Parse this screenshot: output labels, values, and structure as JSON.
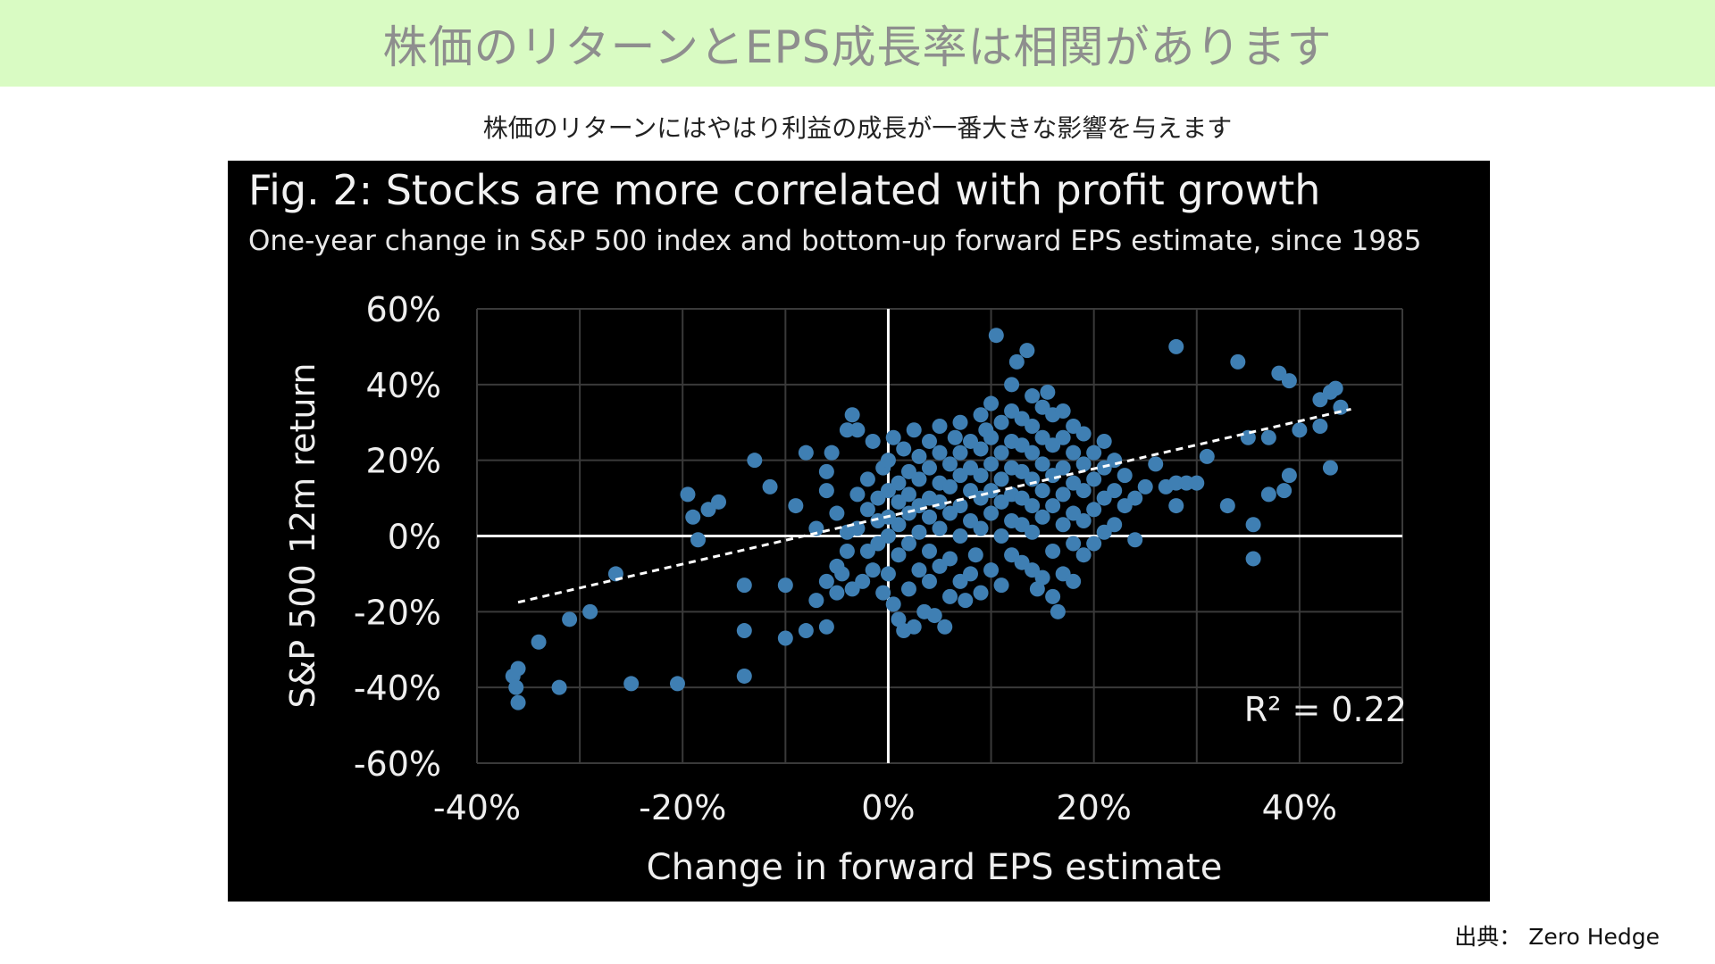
{
  "header": {
    "title": "株価のリターンとEPS成長率は相関があります"
  },
  "subtitle": "株価のリターンにはやはり利益の成長が一番大きな影響を与えます",
  "source": "出典： Zero Hedge",
  "chart_data": {
    "type": "scatter",
    "title": "Fig. 2: Stocks are more correlated with profit growth",
    "subtitle": "One-year change in S&P 500 index and bottom-up forward EPS estimate, since 1985",
    "xlabel": "Change in forward EPS estimate",
    "ylabel": "S&P 500 12m return",
    "xlim": [
      -40,
      50
    ],
    "ylim": [
      -60,
      60
    ],
    "x_ticks": [
      -40,
      -20,
      0,
      20,
      40
    ],
    "y_ticks": [
      -60,
      -40,
      -20,
      0,
      20,
      40,
      60
    ],
    "x_tick_labels": [
      "-40%",
      "-20%",
      "0%",
      "20%",
      "40%"
    ],
    "y_tick_labels": [
      "-60%",
      "-40%",
      "-20%",
      "0%",
      "20%",
      "40%",
      "60%"
    ],
    "grid": true,
    "annotation": "R² = 0.22",
    "trendline": {
      "x": [
        -36,
        45
      ],
      "y": [
        -17.5,
        33.5
      ],
      "style": "dashed"
    },
    "colors": {
      "points": "#3f7fb3",
      "background": "#000000",
      "grid": "#3a3a3a",
      "axes": "#ffffff",
      "trendline": "#ffffff"
    },
    "points": [
      [
        -36,
        -35
      ],
      [
        -36.5,
        -37
      ],
      [
        -36.2,
        -40
      ],
      [
        -36,
        -44
      ],
      [
        -34,
        -28
      ],
      [
        -32,
        -40
      ],
      [
        -31,
        -22
      ],
      [
        -29,
        -20
      ],
      [
        -26.5,
        -10
      ],
      [
        -25,
        -39
      ],
      [
        -20.5,
        -39
      ],
      [
        -19.5,
        11
      ],
      [
        -19,
        5
      ],
      [
        -18.5,
        -1
      ],
      [
        -17.5,
        7
      ],
      [
        -16.5,
        9
      ],
      [
        -14,
        -13
      ],
      [
        -14,
        -25
      ],
      [
        -14,
        -37
      ],
      [
        -13,
        20
      ],
      [
        -11.5,
        13
      ],
      [
        -10,
        -27
      ],
      [
        -10,
        -13
      ],
      [
        -9,
        8
      ],
      [
        -8,
        -25
      ],
      [
        -8,
        22
      ],
      [
        -7,
        -17
      ],
      [
        -7,
        2
      ],
      [
        -6,
        -24
      ],
      [
        -6,
        -12
      ],
      [
        -6,
        12
      ],
      [
        -6,
        17
      ],
      [
        -5.5,
        22
      ],
      [
        -5,
        -15
      ],
      [
        -5,
        -8
      ],
      [
        -5,
        6
      ],
      [
        -4.5,
        -10
      ],
      [
        -4,
        -4
      ],
      [
        -4,
        1
      ],
      [
        -4,
        28
      ],
      [
        -3.5,
        32
      ],
      [
        -3.5,
        -14
      ],
      [
        -3,
        2
      ],
      [
        -3,
        11
      ],
      [
        -3,
        28
      ],
      [
        -2.5,
        -12
      ],
      [
        -2,
        -4
      ],
      [
        -2,
        7
      ],
      [
        -2,
        15
      ],
      [
        -1.5,
        25
      ],
      [
        -1.5,
        -9
      ],
      [
        -1,
        -2
      ],
      [
        -1,
        4
      ],
      [
        -1,
        10
      ],
      [
        -0.5,
        18
      ],
      [
        -0.5,
        -15
      ],
      [
        0,
        -10
      ],
      [
        0,
        0
      ],
      [
        0,
        5
      ],
      [
        0,
        12
      ],
      [
        0,
        20
      ],
      [
        0.5,
        26
      ],
      [
        0.5,
        -18
      ],
      [
        1,
        -22
      ],
      [
        1,
        -5
      ],
      [
        1,
        3
      ],
      [
        1,
        9
      ],
      [
        1,
        14
      ],
      [
        1.5,
        23
      ],
      [
        1.5,
        -25
      ],
      [
        2,
        -14
      ],
      [
        2,
        -2
      ],
      [
        2,
        6
      ],
      [
        2,
        11
      ],
      [
        2,
        17
      ],
      [
        2.5,
        28
      ],
      [
        2.5,
        -24
      ],
      [
        3,
        -9
      ],
      [
        3,
        1
      ],
      [
        3,
        8
      ],
      [
        3,
        15
      ],
      [
        3,
        21
      ],
      [
        3.5,
        -20
      ],
      [
        4,
        -12
      ],
      [
        4,
        -4
      ],
      [
        4,
        5
      ],
      [
        4,
        10
      ],
      [
        4,
        18
      ],
      [
        4,
        25
      ],
      [
        4.5,
        -21
      ],
      [
        5,
        -8
      ],
      [
        5,
        2
      ],
      [
        5,
        9
      ],
      [
        5,
        14
      ],
      [
        5,
        22
      ],
      [
        5,
        29
      ],
      [
        5.5,
        -24
      ],
      [
        6,
        -16
      ],
      [
        6,
        -6
      ],
      [
        6,
        6
      ],
      [
        6,
        13
      ],
      [
        6,
        19
      ],
      [
        6.5,
        26
      ],
      [
        7,
        -12
      ],
      [
        7,
        0
      ],
      [
        7,
        8
      ],
      [
        7,
        16
      ],
      [
        7,
        22
      ],
      [
        7,
        30
      ],
      [
        7.5,
        -17
      ],
      [
        8,
        -10
      ],
      [
        8,
        4
      ],
      [
        8,
        12
      ],
      [
        8,
        18
      ],
      [
        8,
        25
      ],
      [
        8.5,
        -5
      ],
      [
        9,
        -15
      ],
      [
        9,
        2
      ],
      [
        9,
        10
      ],
      [
        9,
        16
      ],
      [
        9,
        23
      ],
      [
        9,
        32
      ],
      [
        9.5,
        28
      ],
      [
        10,
        -9
      ],
      [
        10,
        6
      ],
      [
        10,
        12
      ],
      [
        10,
        19
      ],
      [
        10,
        26
      ],
      [
        10,
        35
      ],
      [
        10.5,
        53
      ],
      [
        11,
        -13
      ],
      [
        11,
        0
      ],
      [
        11,
        9
      ],
      [
        11,
        15
      ],
      [
        11,
        22
      ],
      [
        11,
        30
      ],
      [
        12,
        -5
      ],
      [
        12,
        4
      ],
      [
        12,
        11
      ],
      [
        12,
        18
      ],
      [
        12,
        25
      ],
      [
        12,
        33
      ],
      [
        12,
        40
      ],
      [
        12.5,
        46
      ],
      [
        13,
        -7
      ],
      [
        13,
        3
      ],
      [
        13,
        10
      ],
      [
        13,
        17
      ],
      [
        13,
        24
      ],
      [
        13,
        31
      ],
      [
        13.5,
        49
      ],
      [
        14,
        -9
      ],
      [
        14,
        1
      ],
      [
        14,
        8
      ],
      [
        14,
        15
      ],
      [
        14,
        22
      ],
      [
        14,
        29
      ],
      [
        14,
        37
      ],
      [
        14.5,
        -14
      ],
      [
        15,
        -11
      ],
      [
        15,
        5
      ],
      [
        15,
        12
      ],
      [
        15,
        19
      ],
      [
        15,
        26
      ],
      [
        15,
        34
      ],
      [
        15.5,
        38
      ],
      [
        16,
        -16
      ],
      [
        16,
        -4
      ],
      [
        16,
        8
      ],
      [
        16,
        16
      ],
      [
        16,
        24
      ],
      [
        16,
        32
      ],
      [
        16.5,
        -20
      ],
      [
        17,
        -10
      ],
      [
        17,
        3
      ],
      [
        17,
        11
      ],
      [
        17,
        18
      ],
      [
        17,
        26
      ],
      [
        17,
        33
      ],
      [
        18,
        -12
      ],
      [
        18,
        -2
      ],
      [
        18,
        6
      ],
      [
        18,
        14
      ],
      [
        18,
        22
      ],
      [
        18,
        29
      ],
      [
        19,
        -5
      ],
      [
        19,
        4
      ],
      [
        19,
        12
      ],
      [
        19,
        19
      ],
      [
        19,
        27
      ],
      [
        20,
        -2
      ],
      [
        20,
        7
      ],
      [
        20,
        15
      ],
      [
        20,
        22
      ],
      [
        21,
        1
      ],
      [
        21,
        10
      ],
      [
        21,
        18
      ],
      [
        21,
        25
      ],
      [
        22,
        3
      ],
      [
        22,
        12
      ],
      [
        22,
        20
      ],
      [
        23,
        8
      ],
      [
        23,
        16
      ],
      [
        24,
        -1
      ],
      [
        24,
        10
      ],
      [
        25,
        13
      ],
      [
        26,
        19
      ],
      [
        27,
        13
      ],
      [
        28,
        8
      ],
      [
        28,
        14
      ],
      [
        28,
        50
      ],
      [
        29,
        14
      ],
      [
        30,
        14
      ],
      [
        31,
        21
      ],
      [
        33,
        8
      ],
      [
        34,
        46
      ],
      [
        35,
        26
      ],
      [
        35.5,
        3
      ],
      [
        35.5,
        -6
      ],
      [
        37,
        11
      ],
      [
        37,
        26
      ],
      [
        38,
        43
      ],
      [
        38.5,
        12
      ],
      [
        39,
        41
      ],
      [
        39,
        16
      ],
      [
        40,
        28
      ],
      [
        42,
        29
      ],
      [
        42,
        36
      ],
      [
        43,
        18
      ],
      [
        43,
        38
      ],
      [
        43.5,
        39
      ],
      [
        44,
        34
      ]
    ]
  }
}
